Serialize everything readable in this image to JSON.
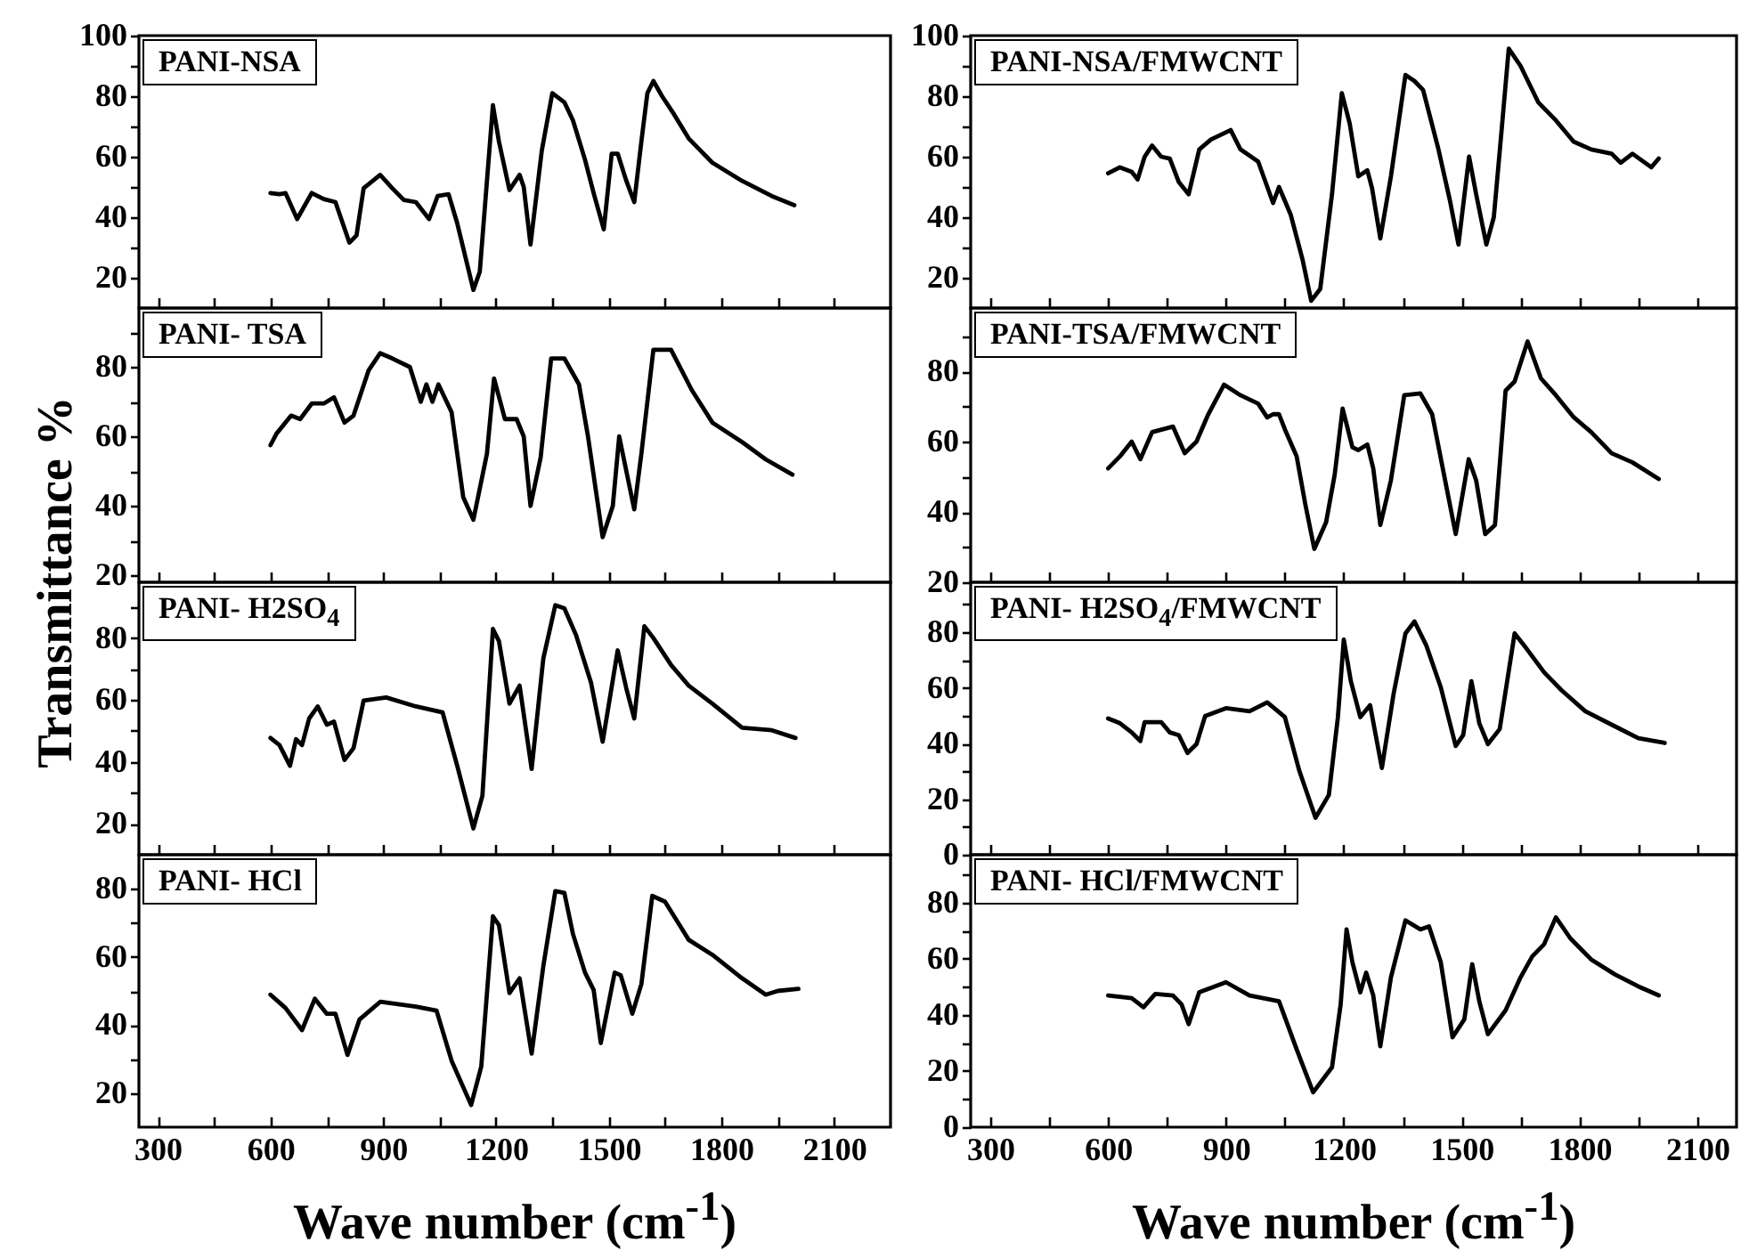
{
  "chart_data": [
    {
      "type": "line",
      "title": "PANI-NSA",
      "color": "#000000",
      "tick_labels": "y",
      "xlim": [
        250,
        2250
      ],
      "ylim": [
        10,
        100
      ],
      "xticks": [
        300,
        {
          "value": 450,
          "label": null
        },
        600,
        {
          "value": 750,
          "label": null
        },
        900,
        {
          "value": 1050,
          "label": null
        },
        1200,
        {
          "value": 1350,
          "label": null
        },
        1500,
        {
          "value": 1650,
          "label": null
        },
        1800,
        {
          "value": 1950,
          "label": null
        },
        2100
      ],
      "yticks": [
        20,
        {
          "value": 30,
          "label": null
        },
        40,
        {
          "value": 50,
          "label": null
        },
        60,
        {
          "value": 70,
          "label": null
        },
        80,
        {
          "value": 90,
          "label": null
        },
        100
      ],
      "x": [
        600,
        624,
        640,
        671,
        710,
        742,
        773,
        810,
        829,
        848,
        892,
        924,
        955,
        987,
        1022,
        1045,
        1074,
        1097,
        1140,
        1157,
        1192,
        1208,
        1236,
        1263,
        1274,
        1292,
        1322,
        1350,
        1382,
        1405,
        1437,
        1460,
        1487,
        1508,
        1524,
        1547,
        1568,
        1587,
        1603,
        1619,
        1642,
        1674,
        1713,
        1776,
        1855,
        1934,
        1994
      ],
      "values": [
        48,
        47.6,
        48,
        39.4,
        48,
        46,
        45,
        31.6,
        34,
        49.6,
        54,
        49.6,
        45.7,
        45,
        39.4,
        47,
        47.6,
        38,
        16,
        22,
        77,
        65,
        49,
        54,
        50,
        31,
        62,
        81,
        78,
        72,
        59,
        48,
        36,
        61,
        61,
        52,
        45,
        65,
        81,
        85,
        80,
        74,
        66,
        58,
        52,
        47,
        44
      ]
    },
    {
      "type": "line",
      "title": "PANI-NSA/FMWCNT",
      "color": "#000000",
      "tick_labels": "y",
      "xlim": [
        250,
        2200
      ],
      "ylim": [
        10,
        100
      ],
      "xticks": [
        300,
        {
          "value": 450,
          "label": null
        },
        600,
        {
          "value": 750,
          "label": null
        },
        900,
        {
          "value": 1050,
          "label": null
        },
        1200,
        {
          "value": 1350,
          "label": null
        },
        1500,
        {
          "value": 1650,
          "label": null
        },
        1800,
        {
          "value": 1950,
          "label": null
        },
        2100
      ],
      "yticks": [
        20,
        {
          "value": 30,
          "label": null
        },
        40,
        {
          "value": 50,
          "label": null
        },
        60,
        {
          "value": 70,
          "label": null
        },
        80,
        {
          "value": 90,
          "label": null
        },
        100
      ],
      "x": [
        600,
        630,
        660,
        675,
        693,
        712,
        735,
        757,
        780,
        805,
        832,
        862,
        912,
        937,
        982,
        1020,
        1035,
        1065,
        1095,
        1117,
        1140,
        1170,
        1195,
        1215,
        1237,
        1260,
        1272,
        1293,
        1320,
        1357,
        1380,
        1402,
        1440,
        1470,
        1492,
        1519,
        1537,
        1563,
        1582,
        1602,
        1620,
        1650,
        1695,
        1740,
        1785,
        1830,
        1882,
        1905,
        1935,
        1983,
        2002
      ],
      "values": [
        54.5,
        56.5,
        55,
        52.5,
        60,
        63.7,
        60,
        59.4,
        51.6,
        47.6,
        62.4,
        65.7,
        68.8,
        62.4,
        58.4,
        44.7,
        50,
        40.8,
        26,
        12.4,
        16.3,
        47.6,
        81,
        71,
        53.5,
        55.5,
        49.6,
        33,
        53.5,
        87,
        85,
        82,
        63,
        45.7,
        31,
        60,
        47.6,
        31,
        40,
        69,
        95.7,
        90,
        78,
        72,
        65,
        62.4,
        61,
        58,
        61,
        56.5,
        59.4
      ]
    },
    {
      "type": "line",
      "title": "PANI- TSA",
      "ylabel": "Transmittance %",
      "color": "#000000",
      "tick_labels": "y",
      "xlim": [
        250,
        2250
      ],
      "ylim": [
        18,
        97
      ],
      "xticks": [
        300,
        {
          "value": 450,
          "label": null
        },
        600,
        {
          "value": 750,
          "label": null
        },
        900,
        {
          "value": 1050,
          "label": null
        },
        1200,
        {
          "value": 1350,
          "label": null
        },
        1500,
        {
          "value": 1650,
          "label": null
        },
        1800,
        {
          "value": 1950,
          "label": null
        },
        2100
      ],
      "yticks": [
        20,
        {
          "value": 30,
          "label": null
        },
        40,
        {
          "value": 50,
          "label": null
        },
        60,
        {
          "value": 70,
          "label": null
        },
        80,
        {
          "value": 90,
          "label": null
        }
      ],
      "x": [
        600,
        616,
        655,
        679,
        710,
        742,
        769,
        797,
        821,
        861,
        892,
        924,
        971,
        1000,
        1015,
        1031,
        1047,
        1082,
        1113,
        1140,
        1176,
        1195,
        1224,
        1255,
        1274,
        1292,
        1319,
        1347,
        1382,
        1421,
        1445,
        1484,
        1511,
        1528,
        1568,
        1587,
        1619,
        1666,
        1721,
        1776,
        1855,
        1918,
        1989
      ],
      "values": [
        57.5,
        60.8,
        66,
        65,
        69.5,
        69.5,
        71.3,
        64,
        66,
        79,
        84,
        82.5,
        80,
        70,
        75,
        70,
        75,
        67,
        42.5,
        36,
        55,
        76.7,
        65,
        65,
        60,
        40,
        54,
        82.5,
        82.5,
        75,
        60,
        31,
        40,
        60,
        39,
        55,
        85,
        85,
        73.4,
        64,
        58.4,
        53.4,
        49
      ]
    },
    {
      "type": "line",
      "title": "PANI-TSA/FMWCNT",
      "color": "#000000",
      "tick_labels": "y",
      "xlim": [
        250,
        2200
      ],
      "ylim": [
        20,
        98
      ],
      "xticks": [
        300,
        {
          "value": 450,
          "label": null
        },
        600,
        {
          "value": 750,
          "label": null
        },
        900,
        {
          "value": 1050,
          "label": null
        },
        1200,
        {
          "value": 1350,
          "label": null
        },
        1500,
        {
          "value": 1650,
          "label": null
        },
        1800,
        {
          "value": 1950,
          "label": null
        },
        2100
      ],
      "yticks": [
        20,
        {
          "value": 30,
          "label": null
        },
        40,
        {
          "value": 50,
          "label": null
        },
        60,
        {
          "value": 70,
          "label": null
        },
        80,
        {
          "value": 90,
          "label": null
        }
      ],
      "x": [
        600,
        630,
        660,
        682,
        712,
        765,
        795,
        825,
        855,
        895,
        937,
        982,
        1005,
        1020,
        1035,
        1050,
        1080,
        1102,
        1125,
        1155,
        1177,
        1197,
        1222,
        1237,
        1260,
        1275,
        1293,
        1320,
        1354,
        1395,
        1425,
        1455,
        1485,
        1518,
        1537,
        1560,
        1585,
        1612,
        1635,
        1668,
        1702,
        1740,
        1785,
        1830,
        1882,
        1935,
        2002
      ],
      "values": [
        52.4,
        55.8,
        60,
        55,
        62.7,
        64.3,
        56.7,
        60,
        67.8,
        76.2,
        73.2,
        70.8,
        66.9,
        67.8,
        67.8,
        63.5,
        55.8,
        42.2,
        29.5,
        37.1,
        50.7,
        69.4,
        58.4,
        57.6,
        59.2,
        52.4,
        36.3,
        49,
        73.2,
        73.7,
        67.8,
        50.7,
        33.7,
        55,
        49,
        33.7,
        36.3,
        74.5,
        77.1,
        88.5,
        78,
        73.2,
        67,
        62.7,
        56.7,
        54.1,
        49.4
      ]
    },
    {
      "type": "line",
      "title": "PANI- H2SO$_{4}$",
      "color": "#000000",
      "tick_labels": "y",
      "xlim": [
        250,
        2250
      ],
      "ylim": [
        10,
        98
      ],
      "xticks": [
        300,
        {
          "value": 450,
          "label": null
        },
        600,
        {
          "value": 750,
          "label": null
        },
        900,
        {
          "value": 1050,
          "label": null
        },
        1200,
        {
          "value": 1350,
          "label": null
        },
        1500,
        {
          "value": 1650,
          "label": null
        },
        1800,
        {
          "value": 1950,
          "label": null
        },
        2100
      ],
      "yticks": [
        20,
        {
          "value": 30,
          "label": null
        },
        40,
        {
          "value": 50,
          "label": null
        },
        60,
        {
          "value": 70,
          "label": null
        },
        80,
        {
          "value": 90,
          "label": null
        }
      ],
      "x": [
        600,
        624,
        652,
        668,
        684,
        703,
        726,
        750,
        769,
        797,
        821,
        848,
        908,
        987,
        1058,
        1097,
        1140,
        1164,
        1192,
        1208,
        1236,
        1263,
        1295,
        1326,
        1358,
        1382,
        1413,
        1453,
        1484,
        1524,
        1547,
        1568,
        1595,
        1619,
        1666,
        1713,
        1776,
        1855,
        1934,
        1997
      ],
      "values": [
        47.7,
        45.4,
        38.7,
        47.3,
        45.4,
        54,
        57.9,
        52,
        53,
        40.6,
        44.4,
        59.8,
        60.8,
        57.9,
        56,
        38.7,
        18.5,
        29,
        82.9,
        79,
        58.8,
        64.6,
        37.7,
        73.3,
        90.6,
        89.6,
        81,
        65.6,
        46.5,
        76,
        63.7,
        54,
        83.8,
        80,
        71.3,
        64.6,
        58.8,
        51,
        50.2,
        47.7
      ]
    },
    {
      "type": "line",
      "title": "PANI- H2SO$_{4}$/FMWCNT",
      "color": "#000000",
      "tick_labels": "y",
      "xlim": [
        250,
        2200
      ],
      "ylim": [
        0,
        98
      ],
      "xticks": [
        300,
        {
          "value": 450,
          "label": null
        },
        600,
        {
          "value": 750,
          "label": null
        },
        900,
        {
          "value": 1050,
          "label": null
        },
        1200,
        {
          "value": 1350,
          "label": null
        },
        1500,
        {
          "value": 1650,
          "label": null
        },
        1800,
        {
          "value": 1950,
          "label": null
        },
        2100
      ],
      "yticks": [
        0,
        {
          "value": 10,
          "label": null
        },
        20,
        {
          "value": 30,
          "label": null
        },
        40,
        {
          "value": 50,
          "label": null
        },
        60,
        {
          "value": 70,
          "label": null
        },
        80,
        {
          "value": 90,
          "label": null
        }
      ],
      "x": [
        600,
        630,
        660,
        682,
        693,
        735,
        757,
        780,
        802,
        825,
        847,
        900,
        960,
        1005,
        1050,
        1087,
        1128,
        1162,
        1185,
        1200,
        1218,
        1242,
        1267,
        1297,
        1327,
        1357,
        1380,
        1410,
        1447,
        1485,
        1504,
        1525,
        1545,
        1567,
        1597,
        1635,
        1665,
        1710,
        1755,
        1815,
        1890,
        1950,
        2017
      ],
      "values": [
        49,
        47.3,
        44,
        40.9,
        47.7,
        47.7,
        44,
        43,
        36.6,
        39.8,
        49.9,
        52.7,
        51.6,
        54.8,
        49.5,
        30.1,
        13.3,
        21.5,
        49.5,
        77.4,
        62.4,
        49.5,
        53.8,
        31.2,
        58,
        79.6,
        83.9,
        75.3,
        60.2,
        39.1,
        43,
        62.4,
        47.3,
        39.8,
        45.2,
        79.6,
        74.2,
        65.6,
        59.1,
        51.6,
        46.2,
        41.9,
        40.2
      ]
    },
    {
      "type": "line",
      "title": "PANI- HCl",
      "xlabel": "Wave number (cm$^{-1}$)",
      "color": "#000000",
      "xlim": [
        250,
        2250
      ],
      "ylim": [
        10,
        90
      ],
      "xticks": [
        300,
        {
          "value": 450,
          "label": null
        },
        600,
        {
          "value": 750,
          "label": null
        },
        900,
        {
          "value": 1050,
          "label": null
        },
        1200,
        {
          "value": 1350,
          "label": null
        },
        1500,
        {
          "value": 1650,
          "label": null
        },
        1800,
        {
          "value": 1950,
          "label": null
        },
        2100
      ],
      "yticks": [
        20,
        {
          "value": 30,
          "label": null
        },
        40,
        {
          "value": 50,
          "label": null
        },
        60,
        {
          "value": 70,
          "label": null
        },
        80
      ],
      "x": [
        600,
        640,
        684,
        718,
        750,
        773,
        805,
        837,
        892,
        987,
        1042,
        1082,
        1134,
        1161,
        1192,
        1208,
        1236,
        1263,
        1295,
        1326,
        1358,
        1382,
        1405,
        1437,
        1460,
        1479,
        1516,
        1532,
        1563,
        1587,
        1616,
        1650,
        1713,
        1776,
        1855,
        1918,
        1950,
        2005
      ],
      "values": [
        48.9,
        45,
        38.5,
        47.7,
        43.3,
        43.3,
        31.2,
        41.6,
        46.8,
        45.4,
        44.2,
        29.5,
        16.5,
        27.8,
        71.9,
        69.3,
        49.4,
        53.7,
        31.6,
        57.2,
        79.3,
        78.8,
        66.7,
        55.4,
        50.3,
        34.7,
        55.4,
        54.6,
        43.3,
        52,
        77.9,
        76.2,
        65,
        60.6,
        53.7,
        48.9,
        50,
        50.6
      ]
    },
    {
      "type": "line",
      "title": "PANI- HCl/FMWCNT",
      "xlabel": "Wave number (cm$^{-1}$)",
      "color": "#000000",
      "xlim": [
        250,
        2200
      ],
      "ylim": [
        0,
        97
      ],
      "xticks": [
        300,
        {
          "value": 450,
          "label": null
        },
        600,
        {
          "value": 750,
          "label": null
        },
        900,
        {
          "value": 1050,
          "label": null
        },
        1200,
        {
          "value": 1350,
          "label": null
        },
        1500,
        {
          "value": 1650,
          "label": null
        },
        1800,
        {
          "value": 1950,
          "label": null
        },
        2100
      ],
      "yticks": [
        0,
        {
          "value": 10,
          "label": null
        },
        20,
        {
          "value": 30,
          "label": null
        },
        40,
        {
          "value": 50,
          "label": null
        },
        60,
        {
          "value": 70,
          "label": null
        },
        80,
        {
          "value": 90,
          "label": null
        }
      ],
      "x": [
        600,
        660,
        690,
        720,
        765,
        787,
        805,
        832,
        900,
        960,
        1035,
        1080,
        1122,
        1170,
        1192,
        1207,
        1222,
        1242,
        1257,
        1275,
        1293,
        1320,
        1357,
        1395,
        1417,
        1447,
        1477,
        1507,
        1527,
        1545,
        1567,
        1612,
        1650,
        1680,
        1710,
        1740,
        1777,
        1830,
        1890,
        1950,
        2002
      ],
      "values": [
        46.9,
        45.9,
        42.7,
        47.4,
        46.9,
        43.7,
        36.7,
        48,
        51.6,
        46.9,
        44.8,
        27.7,
        12.4,
        21.3,
        43.7,
        70.4,
        58.7,
        48,
        55,
        46.9,
        28.8,
        53.3,
        73.6,
        70.4,
        71.5,
        58.7,
        32,
        38.4,
        58,
        44.8,
        33.1,
        41.6,
        53.3,
        60.8,
        65.1,
        74.7,
        67.2,
        59.7,
        54.4,
        50.1,
        46.9
      ]
    }
  ]
}
